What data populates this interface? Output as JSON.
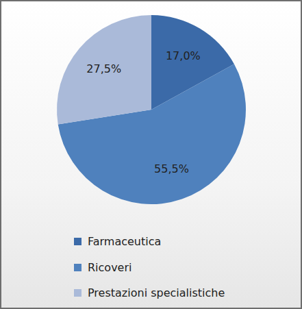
{
  "chart_data": {
    "type": "pie",
    "categories": [
      "Farmaceutica",
      "Ricoveri",
      "Prestazioni specialistiche"
    ],
    "values": [
      17.0,
      55.5,
      27.5
    ],
    "value_labels": [
      "17,0%",
      "55,5%",
      "27,5%"
    ],
    "colors": [
      "#3b6aa8",
      "#4f81bd",
      "#aabad9"
    ],
    "data_labels": true,
    "legend": "bottom"
  }
}
